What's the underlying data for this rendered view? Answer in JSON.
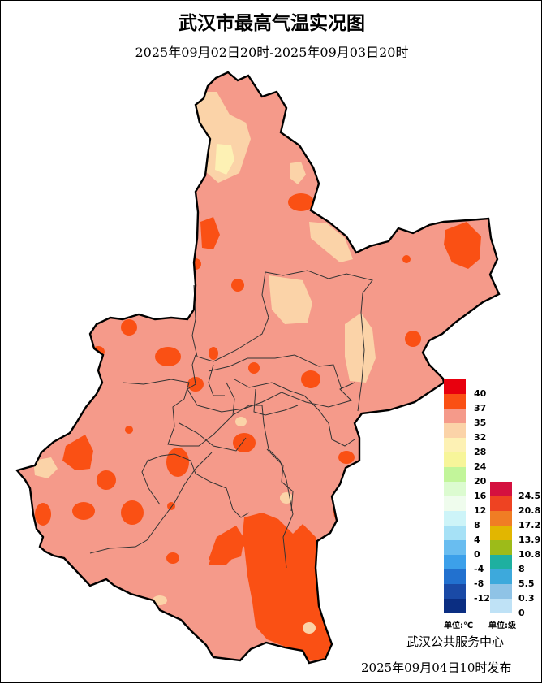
{
  "map": {
    "title": "武汉市最高气温实况图",
    "period": "2025年09月02日20时-2025年09月03日20时",
    "organization": "武汉公共服务中心",
    "issued": "2025年09月04日10时发布"
  },
  "temp_legend": {
    "unit_label": "单位:℃",
    "levels": [
      {
        "label": "40",
        "color": "#e8000e"
      },
      {
        "label": "37",
        "color": "#fa5014"
      },
      {
        "label": "35",
        "color": "#f59a8a"
      },
      {
        "label": "32",
        "color": "#fbd3a8"
      },
      {
        "label": "28",
        "color": "#fdf1b4"
      },
      {
        "label": "24",
        "color": "#f7f59a"
      },
      {
        "label": "20",
        "color": "#c2f59a"
      },
      {
        "label": "16",
        "color": "#dcfbd0"
      },
      {
        "label": "12",
        "color": "#effced"
      },
      {
        "label": "8",
        "color": "#cdf4f8"
      },
      {
        "label": "4",
        "color": "#a6e1f6"
      },
      {
        "label": "0",
        "color": "#69bdf0"
      },
      {
        "label": "-4",
        "color": "#3ca0ea"
      },
      {
        "label": "-8",
        "color": "#2271cf"
      },
      {
        "label": "-12",
        "color": "#1a4aa6"
      },
      {
        "label": "",
        "color": "#0b2e82"
      }
    ]
  },
  "wind_legend": {
    "unit_label": "单位:级",
    "levels": [
      {
        "label": "24.5",
        "color": "#d4113f"
      },
      {
        "label": "20.8",
        "color": "#ee4322"
      },
      {
        "label": "17.2",
        "color": "#f07d24"
      },
      {
        "label": "13.9",
        "color": "#e2b600"
      },
      {
        "label": "10.8",
        "color": "#9dbb19"
      },
      {
        "label": "8",
        "color": "#1eb0a0"
      },
      {
        "label": "5.5",
        "color": "#3da9dc"
      },
      {
        "label": "0.3",
        "color": "#8fc3e6"
      },
      {
        "label": "0",
        "color": "#bfe2f6"
      }
    ]
  }
}
